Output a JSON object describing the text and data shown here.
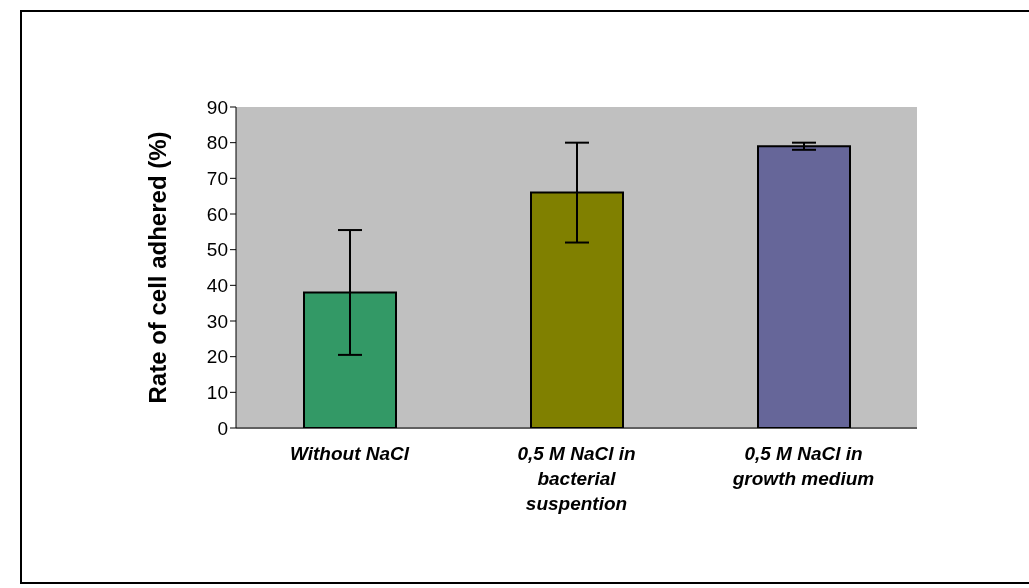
{
  "chart_data": {
    "type": "bar",
    "ylabel": "Rate of cell adhered (%)",
    "categories": [
      "Without NaCl",
      "0,5 M NaCl in bacterial suspention",
      "0,5 M NaCl in growth medium"
    ],
    "values": [
      38,
      66,
      79
    ],
    "colors": [
      "#339966",
      "#808000",
      "#666699"
    ],
    "errors": [
      [
        20.5,
        55.5
      ],
      [
        52,
        80
      ],
      [
        78,
        80
      ]
    ],
    "ylim": [
      0,
      90
    ],
    "yticks": [
      0,
      10,
      20,
      30,
      40,
      50,
      60,
      70,
      80,
      90
    ],
    "grid": false,
    "legend": false
  }
}
